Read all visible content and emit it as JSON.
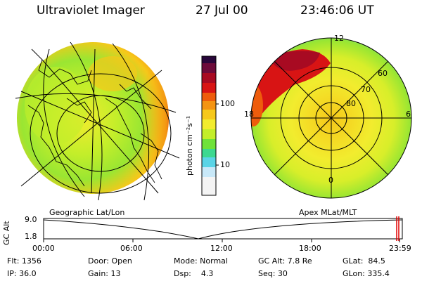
{
  "header": {
    "title": "Ultraviolet Imager",
    "date": "27 Jul 00",
    "time": "23:46:06 UT"
  },
  "colorbar": {
    "unit_label": "photon cm⁻²s⁻¹",
    "tick_100": "100",
    "tick_10": "10",
    "colors": [
      "#f4f4f4",
      "#c8e8f8",
      "#5ad4e6",
      "#3cd890",
      "#6fe23a",
      "#c3ee2a",
      "#f2ec2e",
      "#f6c81a",
      "#f49412",
      "#ee5c0c",
      "#d81414",
      "#a80a22",
      "#6c0a3a",
      "#28063a"
    ]
  },
  "geo_panel": {
    "label": "Geographic Lat/Lon"
  },
  "mag_panel": {
    "label": "Apex MLat/MLT",
    "mlt_12": "12",
    "mlt_18": "18",
    "mlt_6": "6",
    "mlt_0": "0",
    "lat_60": "60",
    "lat_70": "70",
    "lat_80": "80"
  },
  "altitude_plot": {
    "ylabel": "GC Alt",
    "y_top": "9.0",
    "y_bottom": "1.8",
    "x_ticks": [
      "00:00",
      "06:00",
      "12:00",
      "18:00",
      "23:59"
    ],
    "marker_color": "#e00000"
  },
  "info": {
    "flt": "Flt: 1356",
    "ip": "IP: 36.0",
    "door": "Door: Open",
    "gain": "Gain: 13",
    "mode": "Mode: Normal",
    "dsp": "Dsp:    4.3",
    "gcalt": "GC Alt: 7.8 Re",
    "seq": "Seq: 30",
    "glat": "GLat:  84.5",
    "glon": "GLon: 335.4"
  }
}
